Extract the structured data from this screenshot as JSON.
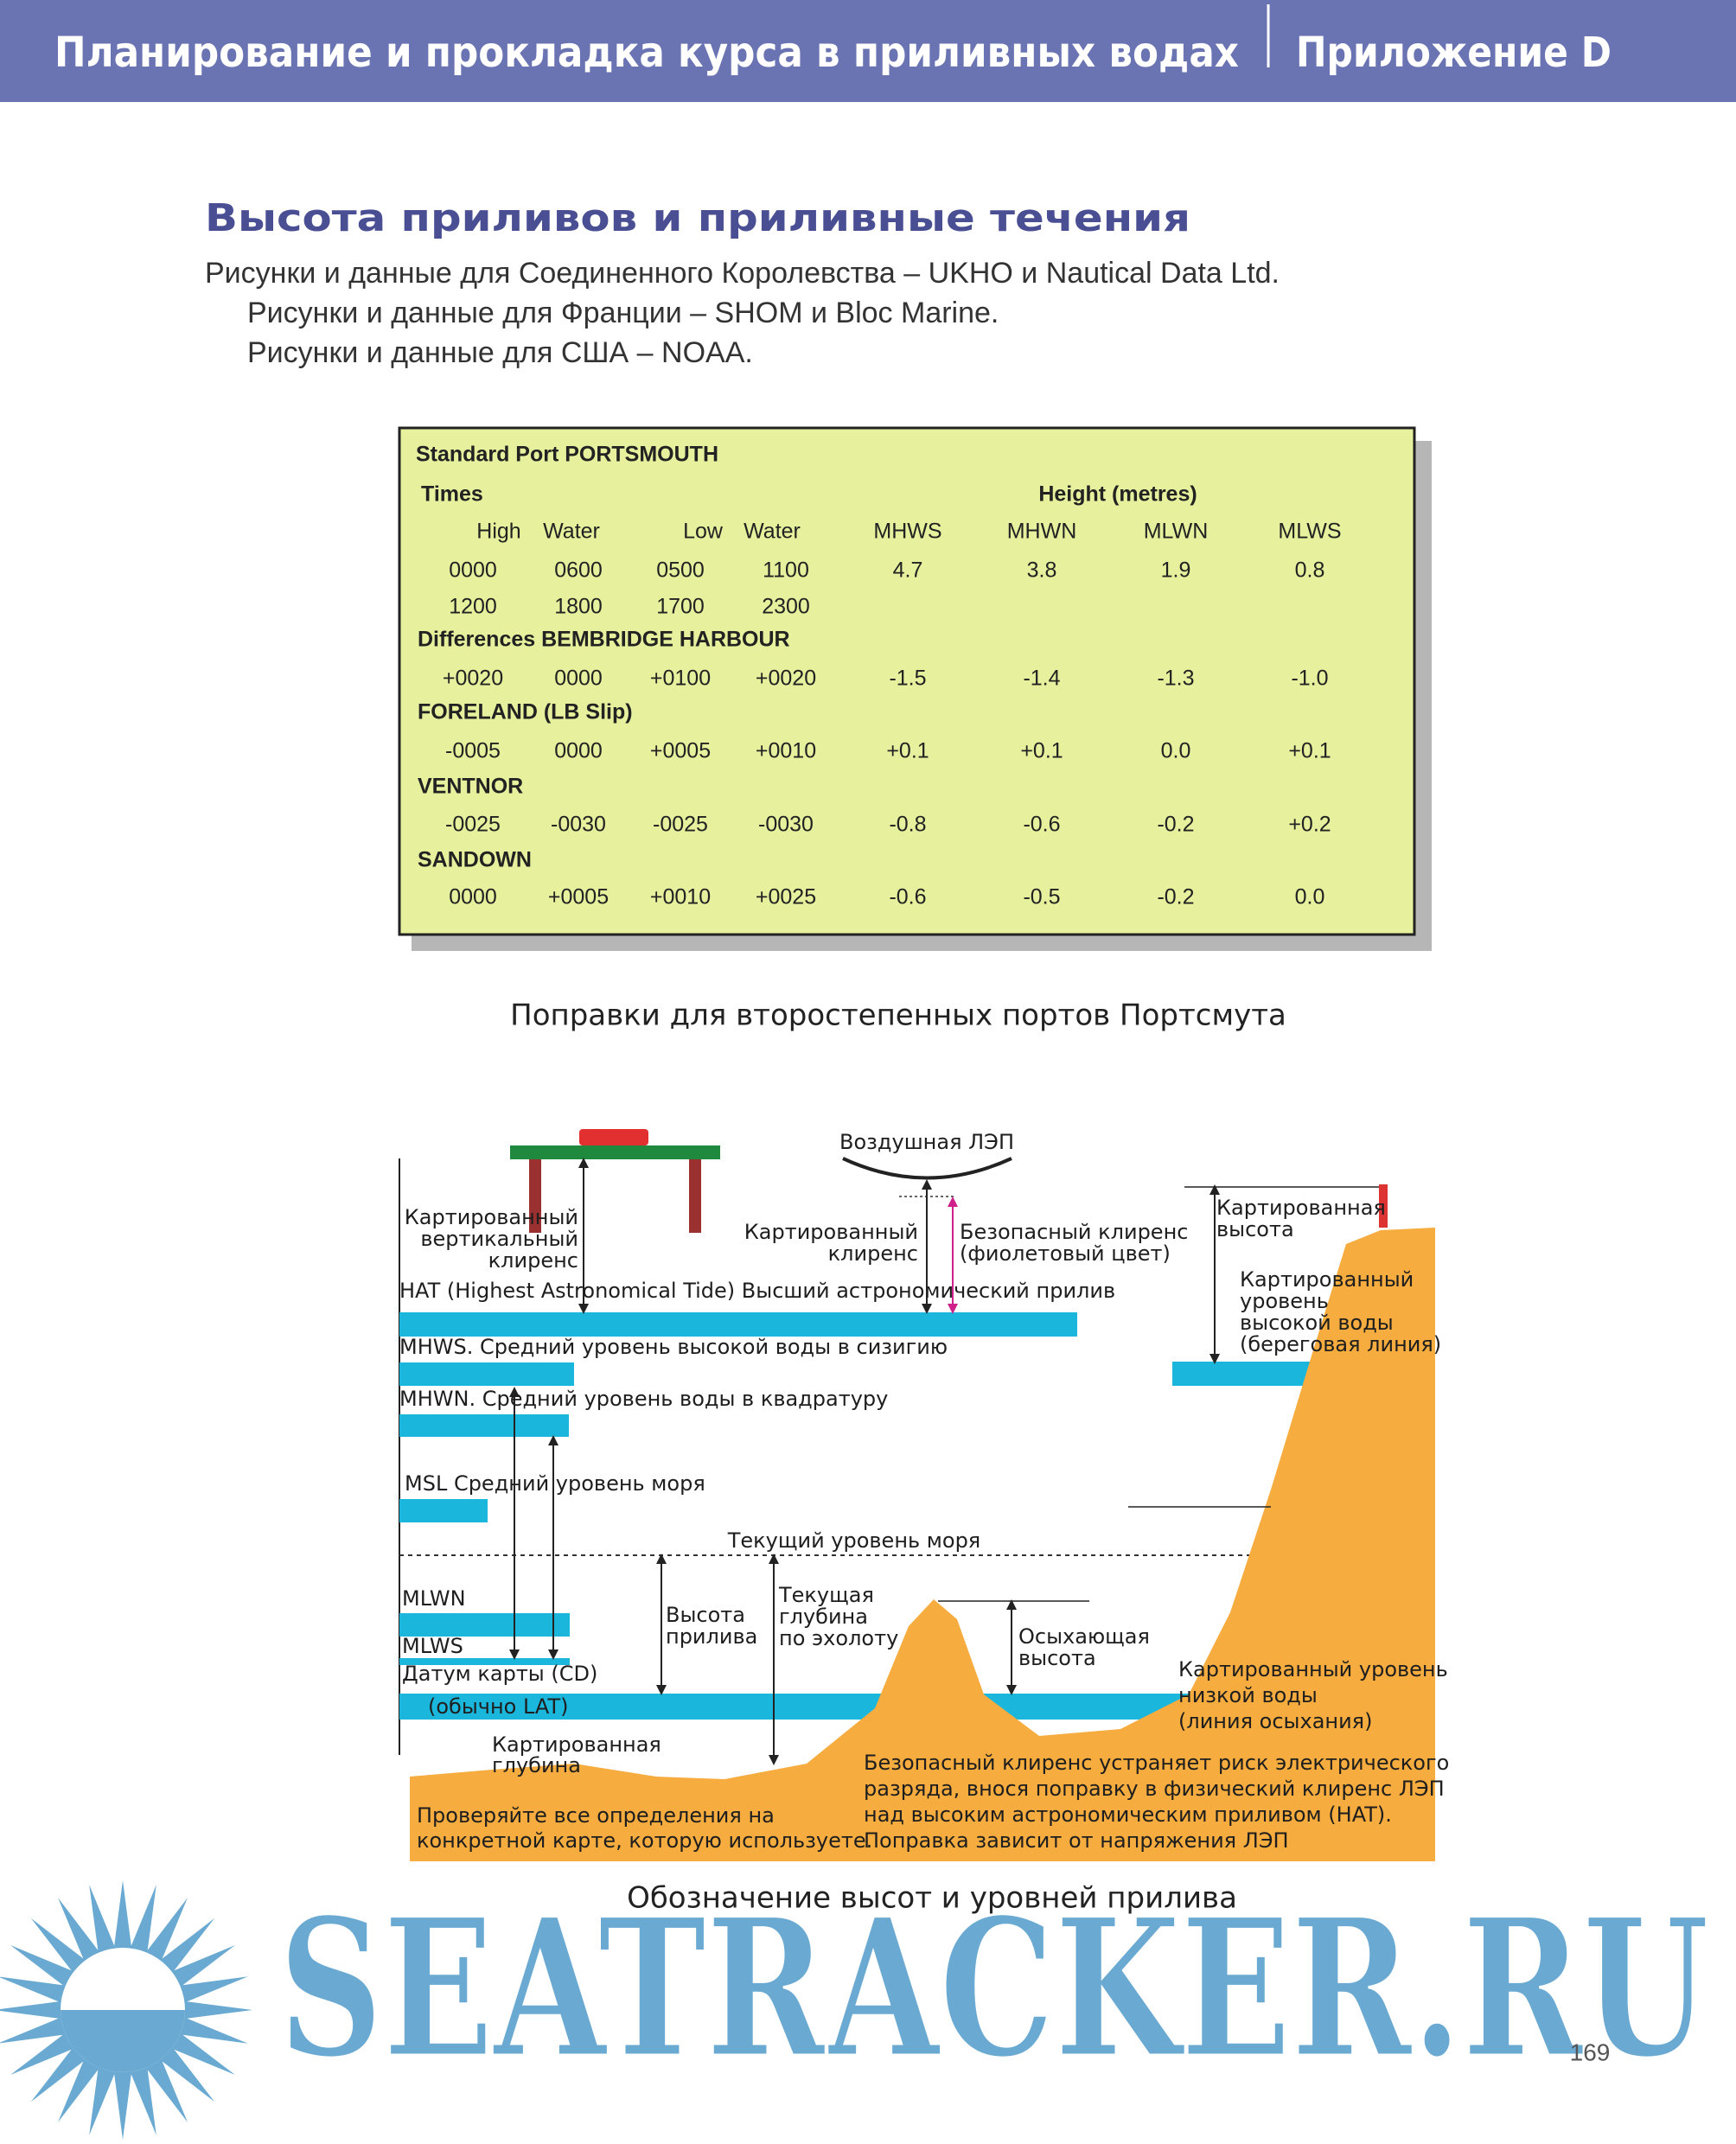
{
  "header": {
    "title": "Планирование и прокладка курса в приливных водах",
    "section": "Приложение D"
  },
  "heading": "Высота приливов и приливные течения",
  "credits": [
    "Рисунки и данные для Соединенного Королевства – UKHO и Nautical Data Ltd.",
    "Рисунки и данные для Франции – SHOM и Bloc Marine.",
    "Рисунки и данные для США – NOAA."
  ],
  "table": {
    "title": "Standard Port PORTSMOUTH",
    "times": "Times",
    "height": "Height  (metres)",
    "columns": [
      "High",
      "Water",
      "Low",
      "Water",
      "MHWS",
      "MHWN",
      "MLWN",
      "MLWS"
    ],
    "standard_rows": [
      [
        "0000",
        "0600",
        "0500",
        "1100",
        "4.7",
        "3.8",
        "1.9",
        "0.8"
      ],
      [
        "1200",
        "1800",
        "1700",
        "2300"
      ]
    ],
    "ports": [
      {
        "name": "Differences BEMBRIDGE HARBOUR",
        "values": [
          "+0020",
          "0000",
          "+0100",
          "+0020",
          "-1.5",
          "-1.4",
          "-1.3",
          "-1.0"
        ]
      },
      {
        "name": "FORELAND (LB Slip)",
        "values": [
          "-0005",
          "0000",
          "+0005",
          "+0010",
          "+0.1",
          "+0.1",
          "0.0",
          "+0.1"
        ]
      },
      {
        "name": "VENTNOR",
        "values": [
          "-0025",
          "-0030",
          "-0025",
          "-0030",
          "-0.8",
          "-0.6",
          "-0.2",
          "+0.2"
        ]
      },
      {
        "name": "SANDOWN",
        "values": [
          "0000",
          "+0005",
          "+0010",
          "+0025",
          "-0.6",
          "-0.5",
          "-0.2",
          "0.0"
        ]
      }
    ]
  },
  "caption_table": "Поправки для второстепенных портов Портсмута",
  "diagram": {
    "labels": [
      [
        "Картированный",
        "вертикальный",
        "клиренс"
      ],
      [
        "Воздушная ЛЭП"
      ],
      [
        "Картированный",
        "клиренс"
      ],
      [
        "Безопасный клиренс",
        "(фиолетовый цвет)"
      ],
      [
        "Картированная",
        "высота"
      ],
      [
        "HAT (Highest Astronomical Tide) Высший астрономический прилив"
      ],
      [
        "Картированный",
        "уровень",
        "высокой воды",
        "(береговая линия)"
      ],
      [
        "MHWS. Средний уровень высокой воды в сизигию"
      ],
      [
        "MHWN. Средний уровень воды в квадратуру"
      ],
      [
        "MSL  Средний уровень моря"
      ],
      [
        "Текущий уровень моря"
      ],
      [
        "MLWN"
      ],
      [
        "Высота",
        "прилива"
      ],
      [
        "Текущая",
        "глубина",
        "по эхолоту"
      ],
      [
        "Осыхающая",
        "высота"
      ],
      [
        "MLWS"
      ],
      [
        "Датум карты (CD)"
      ],
      [
        "(обычно LAT)"
      ],
      [
        "Картированный уровень",
        "низкой воды",
        "(линия осыхания)"
      ],
      [
        "Картированная",
        "глубина"
      ],
      [
        "Проверяйте все определения на",
        "конкретной карте, которую используете."
      ],
      [
        "Безопасный клиренс устраняет риск электрического",
        "разряда, внося поправку в физический клиренс ЛЭП",
        "над высоким астрономическим приливом (HAT).",
        "Поправка зависит от напряжения ЛЭП"
      ]
    ]
  },
  "caption_diagram": "Обозначение высот и уровней прилива",
  "watermark": "SEATRACKER.RU",
  "page_number": "169"
}
